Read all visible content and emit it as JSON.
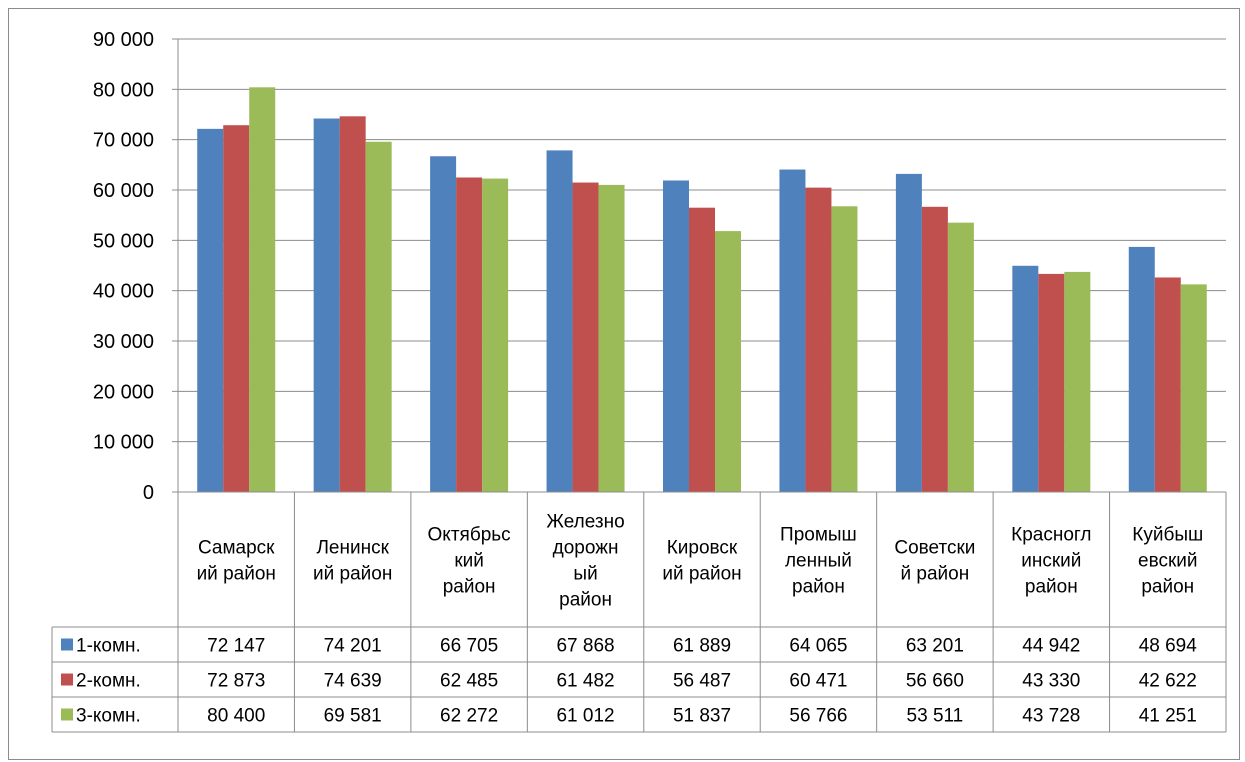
{
  "chart_data": {
    "type": "bar",
    "title": "",
    "xlabel": "",
    "ylabel": "",
    "ylim": [
      0,
      90000
    ],
    "yticks": [
      "0",
      "10 000",
      "20 000",
      "30 000",
      "40 000",
      "50 000",
      "60 000",
      "70 000",
      "80 000",
      "90 000"
    ],
    "grid": true,
    "legend": "data-table",
    "categories": [
      [
        "Самарск",
        "ий район"
      ],
      [
        "Ленинск",
        "ий район"
      ],
      [
        "Октябрьс",
        "кий",
        "район"
      ],
      [
        "Железно",
        "дорожн",
        "ый",
        "район"
      ],
      [
        "Кировск",
        "ий район"
      ],
      [
        "Промыш",
        "ленный",
        "район"
      ],
      [
        "Советски",
        "й район"
      ],
      [
        "Красногл",
        "инский",
        "район"
      ],
      [
        "Куйбыш",
        "евский",
        "район"
      ]
    ],
    "series": [
      {
        "name": "1-комн.",
        "color": "#4f81bd",
        "values": [
          72147,
          74201,
          66705,
          67868,
          61889,
          64065,
          63201,
          44942,
          48694
        ],
        "labels": [
          "72 147",
          "74 201",
          "66 705",
          "67 868",
          "61 889",
          "64 065",
          "63 201",
          "44 942",
          "48 694"
        ]
      },
      {
        "name": "2-комн.",
        "color": "#c0504d",
        "values": [
          72873,
          74639,
          62485,
          61482,
          56487,
          60471,
          56660,
          43330,
          42622
        ],
        "labels": [
          "72 873",
          "74 639",
          "62 485",
          "61 482",
          "56 487",
          "60 471",
          "56 660",
          "43 330",
          "42 622"
        ]
      },
      {
        "name": "3-комн.",
        "color": "#9bbb59",
        "values": [
          80400,
          69581,
          62272,
          61012,
          51837,
          56766,
          53511,
          43728,
          41251
        ],
        "labels": [
          "80 400",
          "69 581",
          "62 272",
          "61 012",
          "51 837",
          "56 766",
          "53 511",
          "43 728",
          "41 251"
        ]
      }
    ]
  }
}
